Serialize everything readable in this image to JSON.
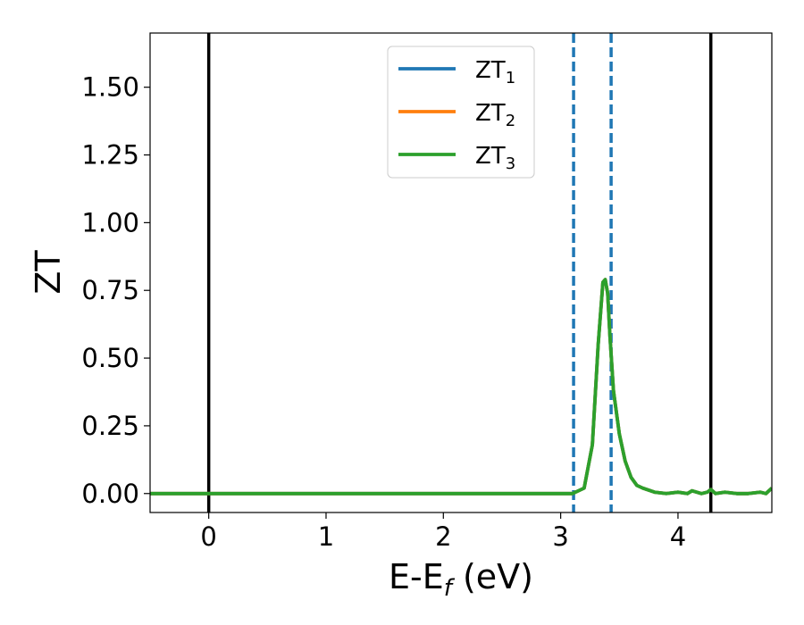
{
  "chart_data": {
    "type": "line",
    "xlabel": {
      "main": "E-E",
      "sub": "f",
      "tail": " (eV)"
    },
    "ylabel": "ZT",
    "xlim": [
      -0.5,
      4.8
    ],
    "ylim": [
      -0.07,
      1.7
    ],
    "xticks": [
      0,
      1,
      2,
      3,
      4
    ],
    "xtick_labels": [
      "0",
      "1",
      "2",
      "3",
      "4"
    ],
    "yticks": [
      0.0,
      0.25,
      0.5,
      0.75,
      1.0,
      1.25,
      1.5
    ],
    "ytick_labels": [
      "0.00",
      "0.25",
      "0.50",
      "0.75",
      "1.00",
      "1.25",
      "1.50"
    ],
    "grid": false,
    "legend_position": "top-center",
    "vlines_solid": [
      0.0,
      4.28
    ],
    "vlines_dashed": [
      3.11,
      3.43
    ],
    "series": [
      {
        "name": "ZT",
        "sub": "1",
        "color": "#1f77b4",
        "x": [
          -0.5,
          3.1,
          3.2,
          3.27,
          3.32,
          3.36,
          3.38,
          3.4,
          3.42,
          3.45,
          3.5,
          3.55,
          3.6,
          3.65,
          3.7,
          3.8,
          3.9,
          4.0,
          4.08,
          4.12,
          4.2,
          4.25,
          4.28,
          4.32,
          4.4,
          4.5,
          4.6,
          4.7,
          4.75,
          4.8
        ],
        "y": [
          0,
          0,
          0.02,
          0.18,
          0.55,
          0.78,
          0.79,
          0.74,
          0.58,
          0.38,
          0.22,
          0.12,
          0.06,
          0.03,
          0.02,
          0.005,
          0.0,
          0.005,
          0.0,
          0.01,
          0.0,
          0.005,
          0.015,
          0.0,
          0.005,
          0.0,
          0.0,
          0.005,
          0.0,
          0.02
        ]
      },
      {
        "name": "ZT",
        "sub": "2",
        "color": "#ff7f0e",
        "x": [
          -0.5,
          3.1,
          3.2,
          3.27,
          3.32,
          3.36,
          3.38,
          3.4,
          3.42,
          3.45,
          3.5,
          3.55,
          3.6,
          3.65,
          3.7,
          3.8,
          3.9,
          4.0,
          4.08,
          4.12,
          4.2,
          4.25,
          4.28,
          4.32,
          4.4,
          4.5,
          4.6,
          4.7,
          4.75,
          4.8
        ],
        "y": [
          0,
          0,
          0.02,
          0.18,
          0.55,
          0.78,
          0.79,
          0.74,
          0.58,
          0.38,
          0.22,
          0.12,
          0.06,
          0.03,
          0.02,
          0.005,
          0.0,
          0.005,
          0.0,
          0.01,
          0.0,
          0.005,
          0.015,
          0.0,
          0.005,
          0.0,
          0.0,
          0.005,
          0.0,
          0.02
        ]
      },
      {
        "name": "ZT",
        "sub": "3",
        "color": "#2ca02c",
        "x": [
          -0.5,
          3.1,
          3.2,
          3.27,
          3.32,
          3.36,
          3.38,
          3.4,
          3.42,
          3.45,
          3.5,
          3.55,
          3.6,
          3.65,
          3.7,
          3.8,
          3.9,
          4.0,
          4.08,
          4.12,
          4.2,
          4.25,
          4.28,
          4.32,
          4.4,
          4.5,
          4.6,
          4.7,
          4.75,
          4.8
        ],
        "y": [
          0,
          0,
          0.02,
          0.18,
          0.55,
          0.78,
          0.79,
          0.74,
          0.58,
          0.38,
          0.22,
          0.12,
          0.06,
          0.03,
          0.02,
          0.005,
          0.0,
          0.005,
          0.0,
          0.01,
          0.0,
          0.005,
          0.015,
          0.0,
          0.005,
          0.0,
          0.0,
          0.005,
          0.0,
          0.02
        ]
      }
    ],
    "colors": {
      "solid_vline": "#000000",
      "dashed_vline": "#1f77b4"
    }
  }
}
